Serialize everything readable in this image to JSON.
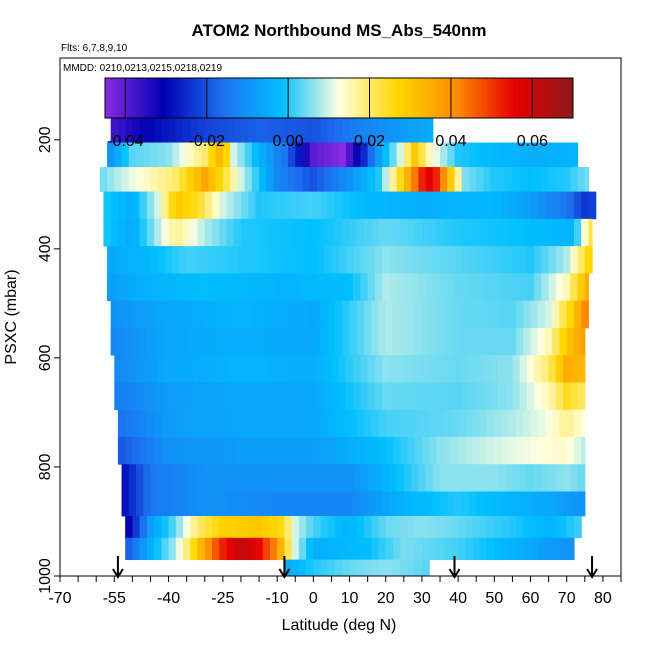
{
  "chart_data": {
    "type": "heatmap",
    "title": "ATOM2 Northbound MS_Abs_540nm",
    "subtitle_flights": "Flts: 6,7,8,9,10",
    "subtitle_dates": "MMDD: 0210,0213,0215,0218,0219",
    "xlabel": "Latitude (deg N)",
    "ylabel": "PSXC (mbar)",
    "xlim": [
      -70,
      85
    ],
    "ylim": [
      1000,
      50
    ],
    "x_ticks": [
      -70,
      -55,
      -40,
      -25,
      -10,
      0,
      10,
      20,
      30,
      40,
      50,
      60,
      70,
      80
    ],
    "y_ticks": [
      200,
      400,
      600,
      800,
      1000
    ],
    "colorbar": {
      "range": [
        -0.045,
        0.07
      ],
      "ticks": [
        -0.04,
        -0.02,
        0.0,
        0.02,
        0.04,
        0.06
      ],
      "tick_labels": [
        "-0.04",
        "-0.02",
        "0.00",
        "0.02",
        "0.04",
        "0.06"
      ],
      "colors": [
        "#8a2be2",
        "#0000b4",
        "#1e6ff0",
        "#00bfff",
        "#ffffe0",
        "#ffd700",
        "#ff8c00",
        "#e60000",
        "#8b1a1a"
      ]
    },
    "arrow_latitudes": [
      -54,
      -8,
      39,
      77
    ],
    "levels": [
      {
        "p": 180,
        "x0": -56,
        "x1": 33,
        "v": [
          [
            -56,
            -0.038
          ],
          [
            -45,
            -0.03
          ],
          [
            -30,
            -0.022
          ],
          [
            -15,
            -0.018
          ],
          [
            0,
            -0.02
          ],
          [
            15,
            -0.012
          ],
          [
            25,
            -0.008
          ],
          [
            33,
            -0.005
          ]
        ]
      },
      {
        "p": 230,
        "x0": -57,
        "x1": 73,
        "v": [
          [
            -57,
            -0.012
          ],
          [
            -50,
            0.003
          ],
          [
            -40,
            0.006
          ],
          [
            -30,
            0.02
          ],
          [
            -25,
            0.036
          ],
          [
            -22,
            0.01
          ],
          [
            -15,
            -0.004
          ],
          [
            -8,
            -0.015
          ],
          [
            0,
            -0.04
          ],
          [
            8,
            -0.045
          ],
          [
            14,
            -0.025
          ],
          [
            18,
            -0.008
          ],
          [
            24,
            0.01
          ],
          [
            28,
            0.03
          ],
          [
            32,
            0.015
          ],
          [
            40,
            0.0
          ],
          [
            50,
            -0.003
          ],
          [
            60,
            -0.005
          ],
          [
            73,
            -0.004
          ]
        ]
      },
      {
        "p": 270,
        "x0": -59,
        "x1": 76,
        "v": [
          [
            -59,
            0.004
          ],
          [
            -52,
            0.01
          ],
          [
            -45,
            0.015
          ],
          [
            -38,
            0.02
          ],
          [
            -30,
            0.036
          ],
          [
            -25,
            0.025
          ],
          [
            -20,
            0.01
          ],
          [
            -10,
            -0.012
          ],
          [
            0,
            -0.02
          ],
          [
            10,
            -0.01
          ],
          [
            18,
            0.0
          ],
          [
            25,
            0.03
          ],
          [
            30,
            0.052
          ],
          [
            33,
            0.058
          ],
          [
            37,
            0.035
          ],
          [
            42,
            0.005
          ],
          [
            50,
            0.0
          ],
          [
            60,
            -0.002
          ],
          [
            70,
            0.0
          ],
          [
            76,
            0.005
          ]
        ]
      },
      {
        "p": 320,
        "x0": -58,
        "x1": 78,
        "v": [
          [
            -58,
            0.0
          ],
          [
            -50,
            -0.005
          ],
          [
            -43,
            0.01
          ],
          [
            -38,
            0.03
          ],
          [
            -32,
            0.025
          ],
          [
            -25,
            0.01
          ],
          [
            -15,
            0.0
          ],
          [
            0,
            0.002
          ],
          [
            15,
            -0.003
          ],
          [
            30,
            -0.005
          ],
          [
            50,
            -0.003
          ],
          [
            60,
            -0.008
          ],
          [
            70,
            -0.015
          ],
          [
            76,
            -0.025
          ],
          [
            78,
            -0.02
          ]
        ]
      },
      {
        "p": 370,
        "x0": -58,
        "x1": 77,
        "v": [
          [
            -58,
            0.0
          ],
          [
            -50,
            -0.006
          ],
          [
            -43,
            0.008
          ],
          [
            -38,
            0.018
          ],
          [
            -30,
            0.008
          ],
          [
            -20,
            0.0
          ],
          [
            0,
            -0.002
          ],
          [
            20,
            0.004
          ],
          [
            40,
            0.0
          ],
          [
            60,
            -0.002
          ],
          [
            72,
            -0.004
          ],
          [
            77,
            0.025
          ]
        ]
      },
      {
        "p": 420,
        "x0": -57,
        "x1": 77,
        "v": [
          [
            -57,
            -0.006
          ],
          [
            -45,
            -0.003
          ],
          [
            -35,
            0.002
          ],
          [
            -20,
            0.0
          ],
          [
            0,
            -0.002
          ],
          [
            20,
            0.006
          ],
          [
            40,
            0.003
          ],
          [
            60,
            0.0
          ],
          [
            70,
            0.008
          ],
          [
            77,
            0.03
          ]
        ]
      },
      {
        "p": 470,
        "x0": -57,
        "x1": 76,
        "v": [
          [
            -57,
            -0.008
          ],
          [
            -45,
            -0.004
          ],
          [
            -30,
            -0.002
          ],
          [
            -10,
            -0.004
          ],
          [
            10,
            -0.002
          ],
          [
            20,
            0.008
          ],
          [
            40,
            0.004
          ],
          [
            60,
            0.002
          ],
          [
            70,
            0.015
          ],
          [
            76,
            0.036
          ]
        ]
      },
      {
        "p": 520,
        "x0": -56,
        "x1": 76,
        "v": [
          [
            -56,
            -0.01
          ],
          [
            -40,
            -0.006
          ],
          [
            -20,
            -0.004
          ],
          [
            0,
            -0.006
          ],
          [
            20,
            0.008
          ],
          [
            40,
            0.004
          ],
          [
            55,
            0.003
          ],
          [
            65,
            0.01
          ],
          [
            72,
            0.03
          ],
          [
            76,
            0.045
          ]
        ]
      },
      {
        "p": 570,
        "x0": -56,
        "x1": 75,
        "v": [
          [
            -56,
            -0.012
          ],
          [
            -40,
            -0.006
          ],
          [
            -20,
            -0.005
          ],
          [
            0,
            -0.006
          ],
          [
            20,
            0.008
          ],
          [
            40,
            0.004
          ],
          [
            55,
            0.004
          ],
          [
            65,
            0.015
          ],
          [
            70,
            0.03
          ],
          [
            75,
            0.038
          ]
        ]
      },
      {
        "p": 620,
        "x0": -55,
        "x1": 75,
        "v": [
          [
            -55,
            -0.012
          ],
          [
            -40,
            -0.006
          ],
          [
            -20,
            -0.004
          ],
          [
            0,
            -0.005
          ],
          [
            20,
            0.006
          ],
          [
            40,
            0.004
          ],
          [
            55,
            0.006
          ],
          [
            65,
            0.02
          ],
          [
            70,
            0.035
          ],
          [
            75,
            0.032
          ]
        ]
      },
      {
        "p": 670,
        "x0": -55,
        "x1": 75,
        "v": [
          [
            -55,
            -0.014
          ],
          [
            -40,
            -0.008
          ],
          [
            -20,
            -0.006
          ],
          [
            0,
            -0.006
          ],
          [
            20,
            0.004
          ],
          [
            40,
            0.003
          ],
          [
            55,
            0.006
          ],
          [
            65,
            0.015
          ],
          [
            70,
            0.025
          ],
          [
            75,
            0.02
          ]
        ]
      },
      {
        "p": 720,
        "x0": -54,
        "x1": 75,
        "v": [
          [
            -54,
            -0.016
          ],
          [
            -40,
            -0.008
          ],
          [
            -20,
            -0.006
          ],
          [
            0,
            -0.006
          ],
          [
            20,
            0.002
          ],
          [
            40,
            0.004
          ],
          [
            55,
            0.008
          ],
          [
            65,
            0.012
          ],
          [
            70,
            0.018
          ],
          [
            75,
            0.012
          ]
        ]
      },
      {
        "p": 770,
        "x0": -54,
        "x1": 75,
        "v": [
          [
            -54,
            -0.02
          ],
          [
            -40,
            -0.01
          ],
          [
            -20,
            -0.008
          ],
          [
            0,
            -0.008
          ],
          [
            20,
            -0.002
          ],
          [
            35,
            0.006
          ],
          [
            50,
            0.01
          ],
          [
            60,
            0.012
          ],
          [
            70,
            0.014
          ],
          [
            75,
            0.008
          ]
        ]
      },
      {
        "p": 820,
        "x0": -53,
        "x1": 75,
        "v": [
          [
            -53,
            -0.03
          ],
          [
            -45,
            -0.015
          ],
          [
            -30,
            -0.01
          ],
          [
            -10,
            -0.01
          ],
          [
            10,
            -0.01
          ],
          [
            20,
            -0.004
          ],
          [
            35,
            0.006
          ],
          [
            50,
            0.006
          ],
          [
            60,
            0.004
          ],
          [
            70,
            0.006
          ],
          [
            75,
            0.004
          ]
        ]
      },
      {
        "p": 870,
        "x0": -53,
        "x1": 75,
        "v": [
          [
            -53,
            -0.03
          ],
          [
            -45,
            -0.015
          ],
          [
            -30,
            -0.01
          ],
          [
            -10,
            -0.012
          ],
          [
            10,
            -0.012
          ],
          [
            25,
            -0.004
          ],
          [
            40,
            0.0
          ],
          [
            55,
            -0.004
          ],
          [
            65,
            -0.006
          ],
          [
            75,
            -0.01
          ]
        ]
      },
      {
        "p": 910,
        "x0": -52,
        "x1": 74,
        "v": [
          [
            -52,
            -0.035
          ],
          [
            -45,
            -0.008
          ],
          [
            -38,
            0.004
          ],
          [
            -32,
            0.02
          ],
          [
            -25,
            0.028
          ],
          [
            -15,
            0.03
          ],
          [
            -8,
            0.025
          ],
          [
            -5,
            0.01
          ],
          [
            0,
            0.002
          ],
          [
            10,
            -0.004
          ],
          [
            20,
            0.004
          ],
          [
            30,
            0.006
          ],
          [
            40,
            0.004
          ],
          [
            55,
            0.0
          ],
          [
            65,
            -0.004
          ],
          [
            74,
            0.002
          ]
        ]
      },
      {
        "p": 950,
        "x0": -52,
        "x1": 72,
        "v": [
          [
            -52,
            -0.02
          ],
          [
            -45,
            -0.005
          ],
          [
            -38,
            0.008
          ],
          [
            -32,
            0.03
          ],
          [
            -26,
            0.05
          ],
          [
            -20,
            0.062
          ],
          [
            -15,
            0.055
          ],
          [
            -10,
            0.04
          ],
          [
            -5,
            0.01
          ],
          [
            0,
            -0.005
          ],
          [
            15,
            -0.002
          ],
          [
            25,
            0.005
          ],
          [
            40,
            0.002
          ],
          [
            55,
            -0.004
          ],
          [
            65,
            -0.008
          ],
          [
            72,
            -0.01
          ]
        ]
      },
      {
        "p": 990,
        "x0": -8,
        "x1": 32,
        "v": [
          [
            -8,
            -0.006
          ],
          [
            0,
            0.0
          ],
          [
            10,
            0.004
          ],
          [
            20,
            0.006
          ],
          [
            32,
            0.003
          ]
        ]
      }
    ]
  }
}
